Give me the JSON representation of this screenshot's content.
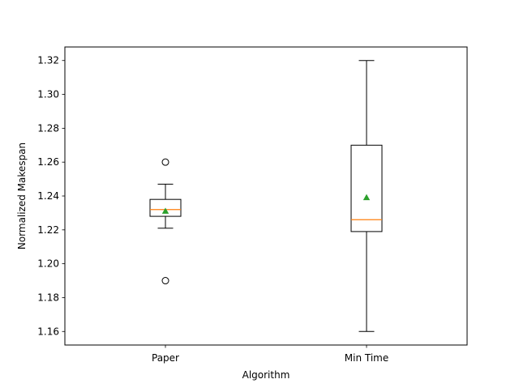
{
  "chart_data": {
    "type": "box",
    "title": "",
    "xlabel": "Algorithm",
    "ylabel": "Normalized Makespan",
    "ylim": [
      1.152,
      1.328
    ],
    "yticks": [
      1.16,
      1.18,
      1.2,
      1.22,
      1.24,
      1.26,
      1.28,
      1.3,
      1.32
    ],
    "ytick_labels": [
      "1.16",
      "1.18",
      "1.20",
      "1.22",
      "1.24",
      "1.26",
      "1.28",
      "1.30",
      "1.32"
    ],
    "categories": [
      "Paper",
      "Min Time"
    ],
    "grid": false,
    "boxes": [
      {
        "label": "Paper",
        "whislo": 1.221,
        "q1": 1.228,
        "median": 1.232,
        "q3": 1.238,
        "whishi": 1.247,
        "mean": 1.231,
        "fliers": [
          1.26,
          1.19
        ]
      },
      {
        "label": "Min Time",
        "whislo": 1.16,
        "q1": 1.219,
        "median": 1.226,
        "q3": 1.27,
        "whishi": 1.32,
        "mean": 1.239,
        "fliers": []
      }
    ],
    "colors": {
      "box": "#000000",
      "median": "#ff7f0e",
      "mean": "#2ca02c",
      "flier": "#000000"
    }
  }
}
